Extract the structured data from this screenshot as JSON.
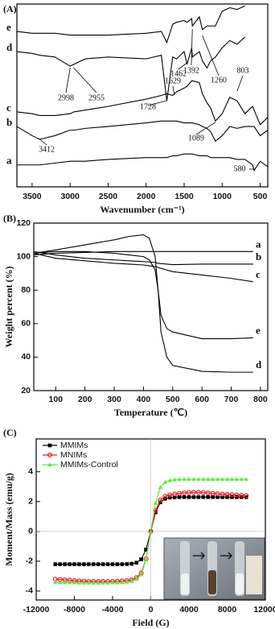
{
  "chart_data": [
    {
      "type": "line",
      "panel_label": "(A)",
      "xlabel": "Wavenumber (cm⁻¹)",
      "xlim": [
        3700,
        400
      ],
      "xticks": [
        3500,
        3000,
        2500,
        2000,
        1500,
        1000,
        500
      ],
      "ylim": [
        0,
        100
      ],
      "x": [
        3700,
        3500,
        3400,
        3200,
        3000,
        2950,
        2800,
        2500,
        2000,
        1800,
        1728,
        1650,
        1600,
        1500,
        1462,
        1400,
        1392,
        1300,
        1260,
        1200,
        1150,
        1089,
        1000,
        900,
        803,
        700,
        600,
        580,
        500,
        400
      ],
      "series": [
        {
          "name": "e",
          "color": "#000000",
          "values": [
            85,
            84,
            84,
            84,
            83,
            83,
            83,
            83,
            84,
            85,
            79,
            89,
            90,
            91,
            90,
            92,
            88,
            93,
            86,
            88,
            88,
            88,
            96,
            98,
            97,
            99,
            null,
            null,
            null,
            null
          ]
        },
        {
          "name": "d",
          "color": "#000000",
          "values": [
            74,
            73,
            72,
            71,
            66,
            67,
            70,
            71,
            70,
            72,
            47,
            71,
            70,
            74,
            67,
            76,
            71,
            74,
            69,
            65,
            69,
            71,
            76,
            80,
            78,
            82,
            null,
            null,
            null,
            null
          ]
        },
        {
          "name": "c",
          "color": "#000000",
          "values": [
            41,
            40,
            39,
            39,
            40,
            41,
            42,
            44,
            48,
            50,
            51,
            50,
            52,
            54,
            55,
            58,
            58,
            57,
            51,
            46,
            43,
            36,
            40,
            49,
            47,
            40,
            44,
            42,
            34,
            38
          ]
        },
        {
          "name": "b",
          "color": "#000000",
          "values": [
            33,
            28,
            26,
            28,
            31,
            31,
            32,
            33,
            35,
            36,
            36,
            36,
            36,
            35,
            35,
            35,
            35,
            34,
            33,
            32,
            30,
            25,
            28,
            33,
            32,
            33,
            33,
            33,
            28,
            31
          ]
        },
        {
          "name": "a",
          "color": "#000000",
          "values": [
            12,
            12,
            12,
            13,
            14,
            14,
            14,
            15,
            16,
            16,
            16,
            17,
            17,
            18,
            18,
            18,
            18,
            17,
            17,
            17,
            16,
            16,
            16,
            16,
            15,
            15,
            12,
            9,
            14,
            11
          ]
        }
      ],
      "annotations": [
        {
          "text": "1392",
          "x": 1392
        },
        {
          "text": "1260",
          "x": 1260
        },
        {
          "text": "2998",
          "x": 2998
        },
        {
          "text": "2955",
          "x": 2955
        },
        {
          "text": "1462",
          "x": 1462
        },
        {
          "text": "1728",
          "x": 1728
        },
        {
          "text": "1629",
          "x": 1629
        },
        {
          "text": "803",
          "x": 803
        },
        {
          "text": "3412",
          "x": 3412
        },
        {
          "text": "1089",
          "x": 1089
        },
        {
          "text": "580",
          "x": 580
        }
      ]
    },
    {
      "type": "line",
      "panel_label": "(B)",
      "xlabel": "Temperature (℃)",
      "ylabel": "Weight percent (%)",
      "xlim": [
        25,
        825
      ],
      "xticks": [
        100,
        200,
        300,
        400,
        500,
        600,
        700,
        800
      ],
      "ylim": [
        20,
        120
      ],
      "yticks": [
        20,
        40,
        60,
        80,
        100,
        120
      ],
      "x": [
        25,
        100,
        200,
        300,
        350,
        400,
        420,
        440,
        450,
        460,
        480,
        500,
        600,
        700,
        775
      ],
      "series": [
        {
          "name": "a",
          "color": "#000000",
          "values": [
            101,
            102,
            102.5,
            103,
            103,
            103,
            103,
            103,
            103,
            103,
            103,
            103,
            103,
            103,
            103
          ]
        },
        {
          "name": "b",
          "color": "#000000",
          "values": [
            103,
            101,
            99,
            98,
            97.5,
            97,
            96.8,
            96.5,
            96,
            95.8,
            95.5,
            95.2,
            95.5,
            95.5,
            95.5
          ]
        },
        {
          "name": "c",
          "color": "#000000",
          "values": [
            102,
            99,
            97.5,
            96,
            95.5,
            95,
            94.5,
            94,
            93.5,
            93,
            92,
            91,
            89,
            87,
            85
          ]
        },
        {
          "name": "e",
          "color": "#000000",
          "values": [
            102,
            103,
            103,
            102,
            101,
            100,
            98,
            92,
            80,
            65,
            57,
            55,
            51,
            51,
            51.5
          ]
        },
        {
          "name": "d",
          "color": "#000000",
          "values": [
            102,
            104,
            107,
            110,
            112,
            113,
            111,
            100,
            80,
            55,
            40,
            35,
            31.5,
            31,
            31
          ]
        }
      ]
    },
    {
      "type": "scatter-line",
      "panel_label": "(C)",
      "xlabel": "Field (G)",
      "ylabel": "Moment/Mass (emu/g)",
      "xlim": [
        -12000,
        12000
      ],
      "xticks": [
        -12000,
        -8000,
        -4000,
        0,
        4000,
        8000,
        12000
      ],
      "ylim": [
        -4.6,
        6.2
      ],
      "yticks": [
        -4,
        -2,
        0,
        2,
        4
      ],
      "legend": "upper left",
      "x": [
        -10000,
        -9500,
        -9000,
        -8500,
        -8000,
        -7500,
        -7000,
        -6500,
        -6000,
        -5500,
        -5000,
        -4500,
        -4000,
        -3500,
        -3000,
        -2500,
        -2000,
        -1500,
        -1000,
        -500,
        0,
        500,
        1000,
        1500,
        2000,
        2500,
        3000,
        3500,
        4000,
        4500,
        5000,
        5500,
        6000,
        6500,
        7000,
        7500,
        8000,
        8500,
        9000,
        9500,
        10000
      ],
      "series": [
        {
          "name": "MMIMs",
          "color": "#000000",
          "marker": "square",
          "values": [
            -2.2,
            -2.2,
            -2.2,
            -2.2,
            -2.2,
            -2.2,
            -2.2,
            -2.2,
            -2.2,
            -2.2,
            -2.2,
            -2.2,
            -2.2,
            -2.2,
            -2.2,
            -2.19,
            -2.17,
            -2.1,
            -1.87,
            -1.22,
            0,
            1.28,
            1.95,
            2.19,
            2.27,
            2.29,
            2.3,
            2.3,
            2.3,
            2.3,
            2.3,
            2.3,
            2.3,
            2.3,
            2.3,
            2.3,
            2.3,
            2.3,
            2.3,
            2.3,
            2.3
          ]
        },
        {
          "name": "MNIMs",
          "color": "#e8202a",
          "marker": "circle",
          "values": [
            -3.2,
            -3.22,
            -3.25,
            -3.27,
            -3.3,
            -3.32,
            -3.33,
            -3.35,
            -3.35,
            -3.36,
            -3.36,
            -3.36,
            -3.35,
            -3.34,
            -3.32,
            -3.3,
            -3.25,
            -3.1,
            -2.8,
            -1.85,
            0,
            1.4,
            2.1,
            2.35,
            2.45,
            2.5,
            2.55,
            2.58,
            2.6,
            2.62,
            2.62,
            2.6,
            2.58,
            2.55,
            2.52,
            2.5,
            2.48,
            2.46,
            2.44,
            2.42,
            2.4
          ]
        },
        {
          "name": "MMIMs-Control",
          "color": "#5fe83a",
          "marker": "triangle",
          "values": [
            -3.4,
            -3.41,
            -3.42,
            -3.43,
            -3.44,
            -3.45,
            -3.45,
            -3.45,
            -3.45,
            -3.45,
            -3.45,
            -3.45,
            -3.44,
            -3.44,
            -3.43,
            -3.4,
            -3.35,
            -3.2,
            -2.9,
            -1.9,
            0,
            1.9,
            2.95,
            3.3,
            3.42,
            3.47,
            3.5,
            3.5,
            3.5,
            3.5,
            3.5,
            3.5,
            3.5,
            3.5,
            3.5,
            3.5,
            3.5,
            3.5,
            3.5,
            3.5,
            3.5
          ]
        }
      ]
    }
  ]
}
